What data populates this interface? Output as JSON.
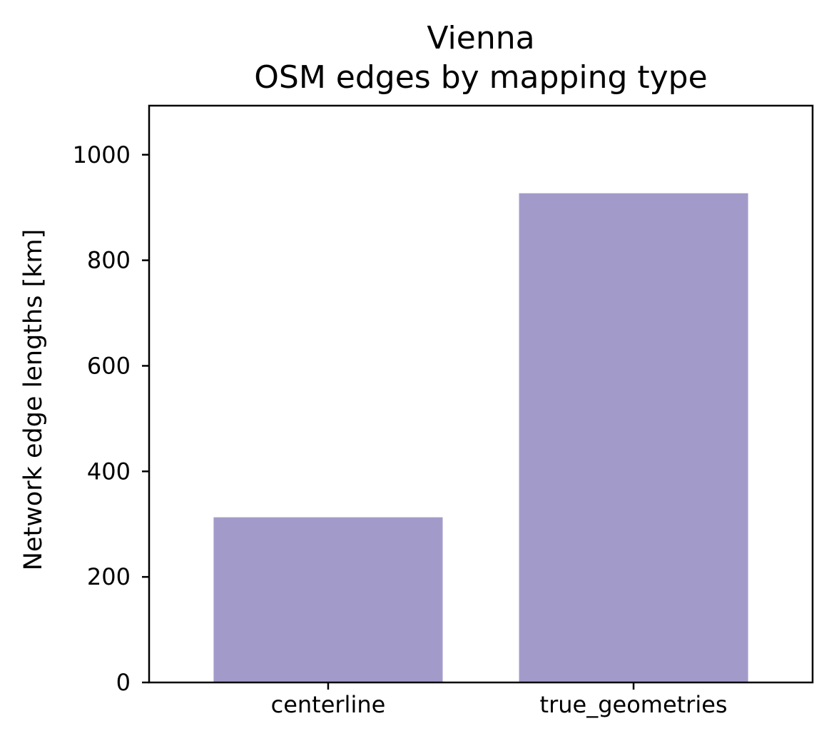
{
  "chart_data": {
    "type": "bar",
    "title_lines": [
      "Vienna",
      "OSM edges by mapping type"
    ],
    "xlabel": "",
    "ylabel": "Network edge lengths [km]",
    "categories": [
      "centerline",
      "true_geometries"
    ],
    "values": [
      313,
      927
    ],
    "ylim": [
      0,
      1093
    ],
    "yticks": [
      0,
      200,
      400,
      600,
      800,
      1000
    ],
    "bar_color": "#a29bca",
    "grid": false,
    "legend": "none"
  }
}
